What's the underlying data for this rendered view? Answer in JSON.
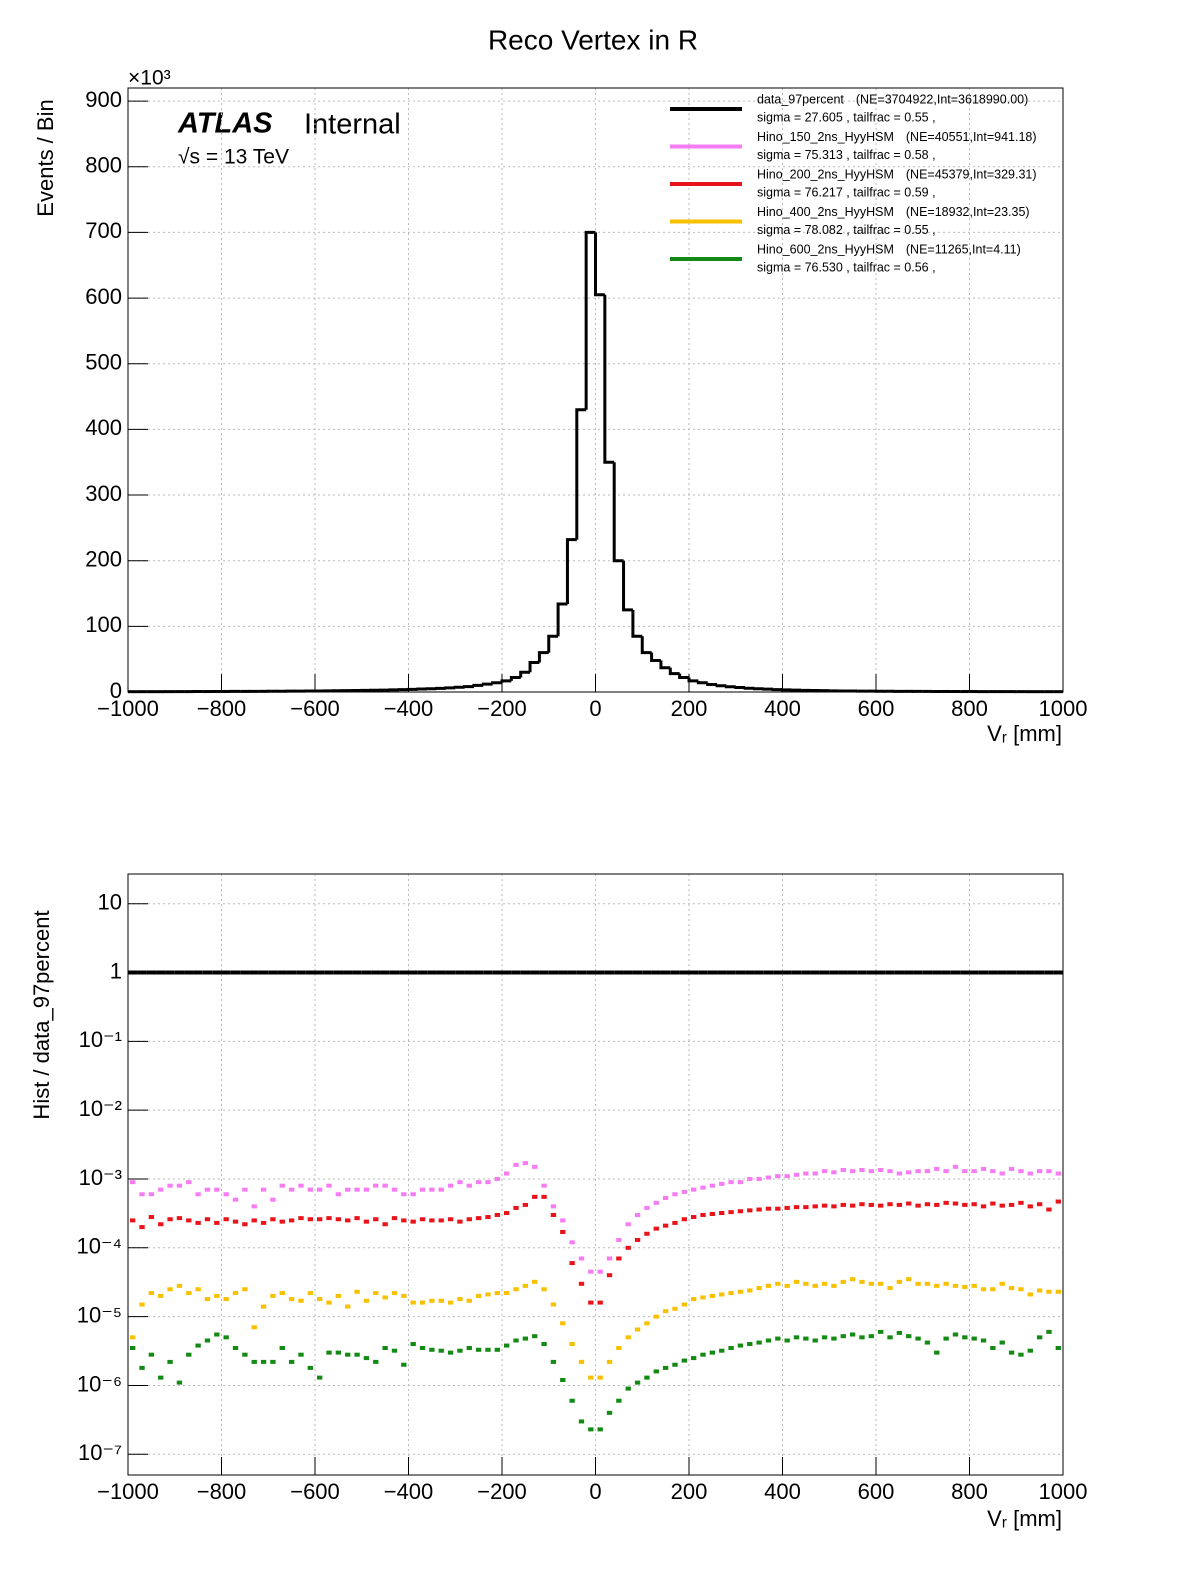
{
  "chart_data": [
    {
      "type": "histogram",
      "title": "Reco Vertex in R",
      "experiment": "ATLAS",
      "status": "Internal",
      "energy": "√s = 13 TeV",
      "x_label": "Vᵣ [mm]",
      "y_label": "Events / Bin",
      "y_multiplier": "×10³",
      "xlim": [
        -1000,
        1000
      ],
      "ylim": [
        0,
        920
      ],
      "grid": true,
      "xticks": [
        {
          "value": -1000,
          "label": "−1000"
        },
        {
          "value": -800,
          "label": "−800"
        },
        {
          "value": -600,
          "label": "−600"
        },
        {
          "value": -400,
          "label": "−400"
        },
        {
          "value": -200,
          "label": "−200"
        },
        0,
        200,
        400,
        600,
        800,
        1000
      ],
      "yticks": [
        0,
        100,
        200,
        300,
        400,
        500,
        600,
        700,
        800,
        900
      ],
      "bins": [
        -1000,
        -980,
        -960,
        -940,
        -920,
        -900,
        -880,
        -860,
        -840,
        -820,
        -800,
        -780,
        -760,
        -740,
        -720,
        -700,
        -680,
        -660,
        -640,
        -620,
        -600,
        -580,
        -560,
        -540,
        -520,
        -500,
        -480,
        -460,
        -440,
        -420,
        -400,
        -380,
        -360,
        -340,
        -320,
        -300,
        -280,
        -260,
        -240,
        -220,
        -200,
        -180,
        -160,
        -140,
        -120,
        -100,
        -80,
        -60,
        -40,
        -20,
        0,
        20,
        40,
        60,
        80,
        100,
        120,
        140,
        160,
        180,
        200,
        220,
        240,
        260,
        280,
        300,
        320,
        340,
        360,
        380,
        400,
        420,
        440,
        460,
        480,
        500,
        520,
        540,
        560,
        580,
        600,
        620,
        640,
        660,
        680,
        700,
        720,
        740,
        760,
        780,
        800,
        820,
        840,
        860,
        880,
        900,
        920,
        940,
        960,
        980,
        1000
      ],
      "series": [
        {
          "name": "data_97percent",
          "stats": "(NE=3704922,Int=3618990.00)",
          "summary": "sigma = 27.605 , tailfrac = 0.55 ,",
          "color": "#000000",
          "values": [
            0.5,
            0.5,
            0.5,
            0.5,
            0.6,
            0.6,
            0.6,
            0.7,
            0.7,
            0.8,
            0.8,
            0.9,
            0.9,
            1.0,
            1.0,
            1.1,
            1.2,
            1.3,
            1.4,
            1.5,
            1.6,
            1.7,
            1.9,
            2.0,
            2.2,
            2.4,
            2.6,
            2.9,
            3.2,
            3.6,
            4.0,
            4.5,
            5.0,
            5.6,
            6.3,
            7.2,
            8.2,
            10,
            12,
            14,
            17,
            22,
            30,
            45,
            60,
            85,
            134,
            232,
            430,
            700,
            605,
            350,
            200,
            125,
            85,
            60,
            48,
            37,
            28,
            22,
            17,
            14,
            11.5,
            9.5,
            8,
            6.8,
            5.8,
            5,
            4.3,
            3.7,
            3.2,
            2.8,
            2.5,
            2.2,
            2.0,
            1.8,
            1.6,
            1.5,
            1.4,
            1.3,
            1.2,
            1.1,
            1.0,
            1.0,
            0.9,
            0.9,
            0.8,
            0.8,
            0.7,
            0.7,
            0.7,
            0.6,
            0.6,
            0.6,
            0.6,
            0.5,
            0.5,
            0.5,
            0.5,
            0.5
          ]
        },
        {
          "name": "Hino_150_2ns_HyyHSM",
          "stats": "(NE=40551,Int=941.18)",
          "summary": "sigma = 75.313 , tailfrac = 0.58 ,",
          "color": "#f57cf2"
        },
        {
          "name": "Hino_200_2ns_HyyHSM",
          "stats": "(NE=45379,Int=329.31)",
          "summary": "sigma = 76.217 , tailfrac = 0.59 ,",
          "color": "#e8141a"
        },
        {
          "name": "Hino_400_2ns_HyyHSM",
          "stats": "(NE=18932,Int=23.35)",
          "summary": "sigma = 78.082 , tailfrac = 0.55 ,",
          "color": "#f9c000"
        },
        {
          "name": "Hino_600_2ns_HyyHSM",
          "stats": "(NE=11265,Int=4.11)",
          "summary": "sigma = 76.530 , tailfrac = 0.56 ,",
          "color": "#138a13"
        }
      ]
    },
    {
      "type": "ratio",
      "x_label": "Vᵣ [mm]",
      "y_label": "Hist / data_97percent",
      "xlim": [
        -1000,
        1000
      ],
      "ylim": [
        5e-08,
        27
      ],
      "log_y": true,
      "grid": true,
      "xticks": [
        {
          "value": -1000,
          "label": "−1000"
        },
        {
          "value": -800,
          "label": "−800"
        },
        {
          "value": -600,
          "label": "−600"
        },
        {
          "value": -400,
          "label": "−400"
        },
        {
          "value": -200,
          "label": "−200"
        },
        0,
        200,
        400,
        600,
        800,
        1000
      ],
      "yticks": [
        {
          "value": 1e-07,
          "label": "10⁻⁷"
        },
        {
          "value": 1e-06,
          "label": "10⁻⁶"
        },
        {
          "value": 1e-05,
          "label": "10⁻⁵"
        },
        {
          "value": 0.0001,
          "label": "10⁻⁴"
        },
        {
          "value": 0.001,
          "label": "10⁻³"
        },
        {
          "value": 0.01,
          "label": "10⁻²"
        },
        {
          "value": 0.1,
          "label": "10⁻¹"
        },
        1,
        10
      ],
      "series": [
        {
          "color": "#000000",
          "style": "line",
          "values": [
            1,
            1,
            1,
            1,
            1,
            1,
            1,
            1,
            1,
            1,
            1,
            1,
            1,
            1,
            1,
            1,
            1,
            1,
            1,
            1,
            1,
            1,
            1,
            1,
            1,
            1,
            1,
            1,
            1,
            1,
            1,
            1,
            1,
            1,
            1,
            1,
            1,
            1,
            1,
            1,
            1,
            1,
            1,
            1,
            1,
            1,
            1,
            1,
            1,
            1,
            1,
            1,
            1,
            1,
            1,
            1,
            1,
            1,
            1,
            1,
            1,
            1,
            1,
            1,
            1,
            1,
            1,
            1,
            1,
            1,
            1,
            1,
            1,
            1,
            1,
            1,
            1,
            1,
            1,
            1,
            1,
            1,
            1,
            1,
            1,
            1,
            1,
            1,
            1,
            1,
            1,
            1,
            1,
            1,
            1,
            1,
            1,
            1,
            1,
            1
          ]
        },
        {
          "color": "#f57cf2",
          "style": "points",
          "values": [
            0.0009,
            0.0006,
            0.0006,
            0.0007,
            0.0008,
            0.0008,
            0.0009,
            0.0006,
            0.0007,
            0.0007,
            0.0006,
            0.0005,
            0.0007,
            0.0004,
            0.0007,
            0.0005,
            0.0008,
            0.0007,
            0.0008,
            0.0007,
            0.0007,
            0.0008,
            0.0006,
            0.0007,
            0.0007,
            0.0007,
            0.0008,
            0.0008,
            0.0007,
            0.0006,
            0.0006,
            0.0007,
            0.0007,
            0.0007,
            0.0008,
            0.0009,
            0.0008,
            0.0009,
            0.0009,
            0.001,
            0.0012,
            0.0016,
            0.0017,
            0.0015,
            0.0008,
            0.0004,
            0.00025,
            0.00012,
            7e-05,
            4.5e-05,
            4.5e-05,
            7e-05,
            0.00013,
            0.00022,
            0.0003,
            0.00038,
            0.00045,
            0.00053,
            0.0006,
            0.00065,
            0.0007,
            0.00075,
            0.0008,
            0.00085,
            0.0009,
            0.0009,
            0.001,
            0.001,
            0.00105,
            0.0011,
            0.0011,
            0.00115,
            0.0012,
            0.0012,
            0.0013,
            0.00125,
            0.00135,
            0.0013,
            0.00135,
            0.0013,
            0.00135,
            0.0013,
            0.0012,
            0.00125,
            0.0013,
            0.0013,
            0.0014,
            0.0013,
            0.0015,
            0.0013,
            0.0013,
            0.0014,
            0.0013,
            0.0012,
            0.0014,
            0.0013,
            0.0012,
            0.0013,
            0.0013,
            0.0012
          ]
        },
        {
          "color": "#e8141a",
          "style": "points",
          "values": [
            0.00025,
            0.0002,
            0.00028,
            0.00022,
            0.00026,
            0.00027,
            0.00025,
            0.00023,
            0.00026,
            0.00023,
            0.00026,
            0.00024,
            0.00022,
            0.00025,
            0.00023,
            0.00026,
            0.00024,
            0.00025,
            0.00027,
            0.00026,
            0.00026,
            0.00027,
            0.00026,
            0.00025,
            0.00027,
            0.00024,
            0.00026,
            0.00022,
            0.00027,
            0.00025,
            0.00024,
            0.00026,
            0.00025,
            0.00025,
            0.00026,
            0.00024,
            0.00026,
            0.00027,
            0.00028,
            0.0003,
            0.00032,
            0.00038,
            0.00042,
            0.00055,
            0.00055,
            0.0003,
            0.00017,
            6e-05,
            3e-05,
            1.6e-05,
            1.6e-05,
            4e-05,
            7e-05,
            0.0001,
            0.00013,
            0.00016,
            0.00019,
            0.00021,
            0.00023,
            0.00026,
            0.00028,
            0.0003,
            0.00031,
            0.00032,
            0.00033,
            0.00034,
            0.00035,
            0.00036,
            0.00037,
            0.00037,
            0.00038,
            0.00039,
            0.00039,
            0.0004,
            0.00041,
            0.0004,
            0.00042,
            0.00041,
            0.00043,
            0.00042,
            0.00041,
            0.00043,
            0.00042,
            0.00044,
            0.00041,
            0.00043,
            0.00042,
            0.00045,
            0.00044,
            0.00042,
            0.00043,
            0.0004,
            0.00044,
            0.00041,
            0.00042,
            0.00045,
            0.0004,
            0.00043,
            0.00036,
            0.00047
          ]
        },
        {
          "color": "#f9c000",
          "style": "points",
          "values": [
            5e-06,
            1.5e-05,
            2.2e-05,
            2e-05,
            2.5e-05,
            2.8e-05,
            2.2e-05,
            2.5e-05,
            1.8e-05,
            2e-05,
            1.8e-05,
            2.2e-05,
            2.5e-05,
            7e-06,
            1.4e-05,
            2e-05,
            2.2e-05,
            1.8e-05,
            1.7e-05,
            2.2e-05,
            1.8e-05,
            1.6e-05,
            2e-05,
            1.4e-05,
            2.3e-05,
            1.7e-05,
            2.2e-05,
            1.9e-05,
            2.2e-05,
            2e-05,
            1.6e-05,
            1.6e-05,
            1.7e-05,
            1.7e-05,
            1.6e-05,
            1.8e-05,
            1.7e-05,
            2e-05,
            2.1e-05,
            2.2e-05,
            2.2e-05,
            2.5e-05,
            2.8e-05,
            3.2e-05,
            2.5e-05,
            1.5e-05,
            8e-06,
            4e-06,
            2.2e-06,
            1.3e-06,
            1.3e-06,
            2.2e-06,
            3.5e-06,
            5e-06,
            6.5e-06,
            8e-06,
            1e-05,
            1.2e-05,
            1.3e-05,
            1.5e-05,
            1.8e-05,
            1.9e-05,
            2e-05,
            2.1e-05,
            2.2e-05,
            2.3e-05,
            2.4e-05,
            2.6e-05,
            2.8e-05,
            3e-05,
            2.8e-05,
            3.2e-05,
            3e-05,
            2.8e-05,
            3e-05,
            2.8e-05,
            3.2e-05,
            3.5e-05,
            3.2e-05,
            3e-05,
            3e-05,
            2.6e-05,
            3.2e-05,
            3.5e-05,
            3e-05,
            3e-05,
            2.8e-05,
            3e-05,
            2.8e-05,
            2.7e-05,
            2.8e-05,
            2.5e-05,
            2.5e-05,
            3e-05,
            2.6e-05,
            2.5e-05,
            2.1e-05,
            2.4e-05,
            2.3e-05,
            2.3e-05
          ]
        },
        {
          "color": "#138a13",
          "style": "points",
          "values": [
            3.5e-06,
            1.8e-06,
            2.8e-06,
            1.3e-06,
            2.2e-06,
            1.1e-06,
            2.8e-06,
            3.8e-06,
            4.5e-06,
            5.5e-06,
            5e-06,
            3.5e-06,
            2.8e-06,
            2.2e-06,
            2.2e-06,
            2.2e-06,
            3.5e-06,
            2.2e-06,
            2.8e-06,
            1.8e-06,
            1.3e-06,
            3e-06,
            3e-06,
            2.8e-06,
            2.8e-06,
            2.5e-06,
            2.2e-06,
            3.5e-06,
            3.2e-06,
            2e-06,
            4e-06,
            3.5e-06,
            3.3e-06,
            3.2e-06,
            3e-06,
            3.2e-06,
            3.5e-06,
            3.3e-06,
            3.3e-06,
            3.3e-06,
            3.8e-06,
            4.5e-06,
            4.8e-06,
            5.2e-06,
            4e-06,
            2.2e-06,
            1.2e-06,
            6e-07,
            3e-07,
            2.3e-07,
            2.3e-07,
            4e-07,
            6e-07,
            9e-07,
            1.1e-06,
            1.3e-06,
            1.6e-06,
            1.8e-06,
            2e-06,
            2.3e-06,
            2.5e-06,
            2.8e-06,
            3e-06,
            3.2e-06,
            3.5e-06,
            3.8e-06,
            4e-06,
            4.2e-06,
            4.5e-06,
            4.8e-06,
            4.5e-06,
            5e-06,
            4.8e-06,
            4.5e-06,
            5e-06,
            4.8e-06,
            5.2e-06,
            5.5e-06,
            5e-06,
            5.2e-06,
            6e-06,
            5e-06,
            5.8e-06,
            5.2e-06,
            4.8e-06,
            4.2e-06,
            3e-06,
            4.8e-06,
            5.5e-06,
            5e-06,
            4.8e-06,
            4.5e-06,
            3.5e-06,
            4.2e-06,
            3e-06,
            2.8e-06,
            3.2e-06,
            5e-06,
            6e-06,
            3.5e-06
          ]
        }
      ]
    }
  ]
}
